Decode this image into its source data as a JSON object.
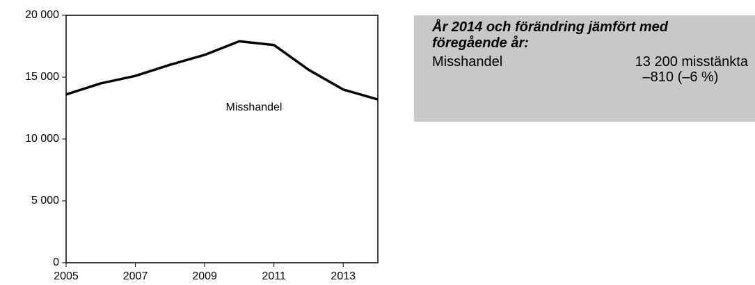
{
  "chart_data": {
    "type": "line",
    "x": [
      2005,
      2006,
      2007,
      2008,
      2009,
      2010,
      2011,
      2012,
      2013,
      2014
    ],
    "series": [
      {
        "name": "Misshandel",
        "color": "#000000",
        "values": [
          13600,
          14500,
          15100,
          16000,
          16800,
          17900,
          17600,
          15600,
          14000,
          13200
        ]
      }
    ],
    "xlim": [
      2005,
      2014
    ],
    "xticks": [
      2005,
      2007,
      2009,
      2011,
      2013
    ],
    "ylim": [
      0,
      20000
    ],
    "yticks": [
      0,
      {
        "value": 5000,
        "label": "5 000"
      },
      {
        "value": 10000,
        "label": "10 000"
      },
      {
        "value": 15000,
        "label": "15 000"
      },
      {
        "value": 20000,
        "label": "20 000"
      }
    ]
  },
  "info_box": {
    "title": "År 2014 och förändring jämfört med föregående år:",
    "rows": [
      {
        "label": "Misshandel",
        "value": "13 200 misstänkta",
        "change": "–810 (–6 %)"
      }
    ]
  }
}
